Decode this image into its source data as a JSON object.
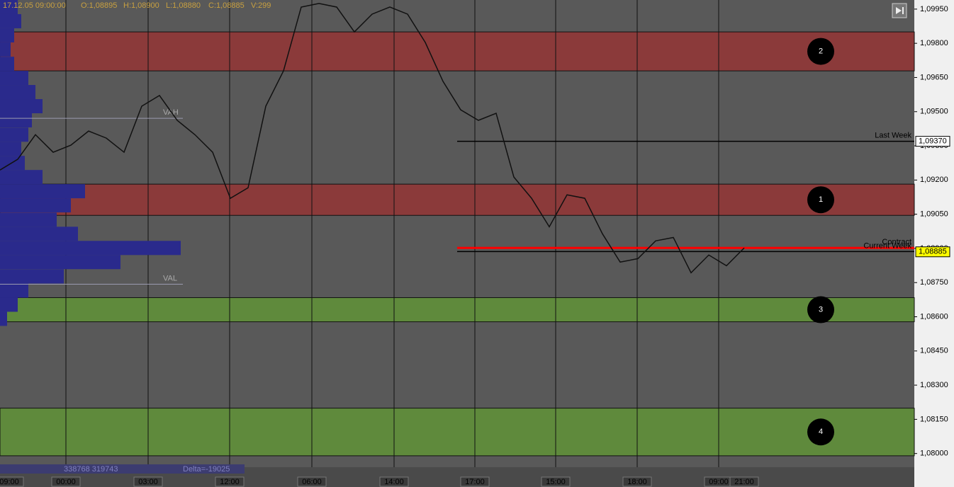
{
  "chart_data": {
    "type": "line",
    "header": [
      "17.12.05 09:00:00",
      "O:1,08895",
      "H:1,08900",
      "L:1,08880",
      "C:1,08885",
      "V:299"
    ],
    "color": "#111111",
    "values": [
      1.09244,
      1.09291,
      1.09399,
      1.09322,
      1.09353,
      1.09415,
      1.09384,
      1.09322,
      1.09524,
      1.09571,
      1.09462,
      1.09399,
      1.09322,
      1.0912,
      1.09166,
      1.09524,
      1.09679,
      1.09959,
      1.09975,
      1.09959,
      1.0985,
      1.09928,
      1.09959,
      1.09928,
      1.09804,
      1.09633,
      1.09508,
      1.09462,
      1.09493,
      1.09213,
      1.0912,
      1.08995,
      1.09135,
      1.0912,
      1.08964,
      1.0884,
      1.08855,
      1.08933,
      1.08948,
      1.08793,
      1.08871,
      1.08824,
      1.08902
    ],
    "ylim": [
      1.0794,
      1.0999
    ],
    "yticks": [
      {
        "value": 1.0995,
        "label": "1,09950"
      },
      {
        "value": 1.098,
        "label": "1,09800"
      },
      {
        "value": 1.0965,
        "label": "1,09650"
      },
      {
        "value": 1.095,
        "label": "1,09500"
      },
      {
        "value": 1.0935,
        "label": "1,09350"
      },
      {
        "value": 1.092,
        "label": "1,09200"
      },
      {
        "value": 1.0905,
        "label": "1,09050"
      },
      {
        "value": 1.089,
        "label": "1,08900"
      },
      {
        "value": 1.0875,
        "label": "1,08750"
      },
      {
        "value": 1.086,
        "label": "1,08600"
      },
      {
        "value": 1.0845,
        "label": "1,08450"
      },
      {
        "value": 1.083,
        "label": "1,08300"
      },
      {
        "value": 1.0815,
        "label": "1,08150"
      },
      {
        "value": 1.08,
        "label": "1,08000"
      }
    ],
    "x_tick_labels": [
      "09:00",
      "00:00",
      "03:00",
      "12:00",
      "06:00",
      "14:00",
      "17:00",
      "15:00",
      "18:00",
      "09:00",
      "21:00"
    ],
    "zones": [
      {
        "label": "2",
        "from": 1.09679,
        "to": 1.0985,
        "color": "#8b3a3a"
      },
      {
        "label": "1",
        "from": 1.09045,
        "to": 1.09182,
        "color": "#8b3a3a"
      },
      {
        "label": "3",
        "from": 1.08578,
        "to": 1.08684,
        "color": "#5f8a3c"
      },
      {
        "label": "4",
        "from": 1.0799,
        "to": 1.08199,
        "color": "#5f8a3c"
      }
    ],
    "levels": [
      {
        "label": "Last Week",
        "value": 1.0937,
        "value_label": "1,09370",
        "color": "#000000"
      },
      {
        "label": "Contract",
        "value": 1.08902,
        "color": "#ff0000"
      },
      {
        "label": "Current Week",
        "value": 1.08886,
        "color": "#000000"
      }
    ],
    "current_price": {
      "value": 1.08885,
      "label": "1,08885",
      "color": "#ffff00"
    },
    "value_area": [
      {
        "label": "VAH",
        "value": 1.09471
      },
      {
        "label": "VAL",
        "value": 1.08743
      }
    ],
    "volume_profile": {
      "color": "#2a2a8c",
      "prices": [
        1.09959,
        1.09897,
        1.09835,
        1.09773,
        1.0971,
        1.09648,
        1.09586,
        1.09524,
        1.09462,
        1.09399,
        1.09337,
        1.09275,
        1.09213,
        1.09151,
        1.09089,
        1.09026,
        1.08964,
        1.08902,
        1.0884,
        1.08777,
        1.08715,
        1.08653,
        1.08591
      ],
      "values": [
        25,
        30,
        20,
        15,
        20,
        40,
        50,
        60,
        45,
        40,
        30,
        35,
        60,
        120,
        100,
        80,
        110,
        255,
        170,
        90,
        40,
        25,
        10
      ]
    },
    "footer": [
      "338768 319743",
      "Delta=-19025"
    ]
  }
}
